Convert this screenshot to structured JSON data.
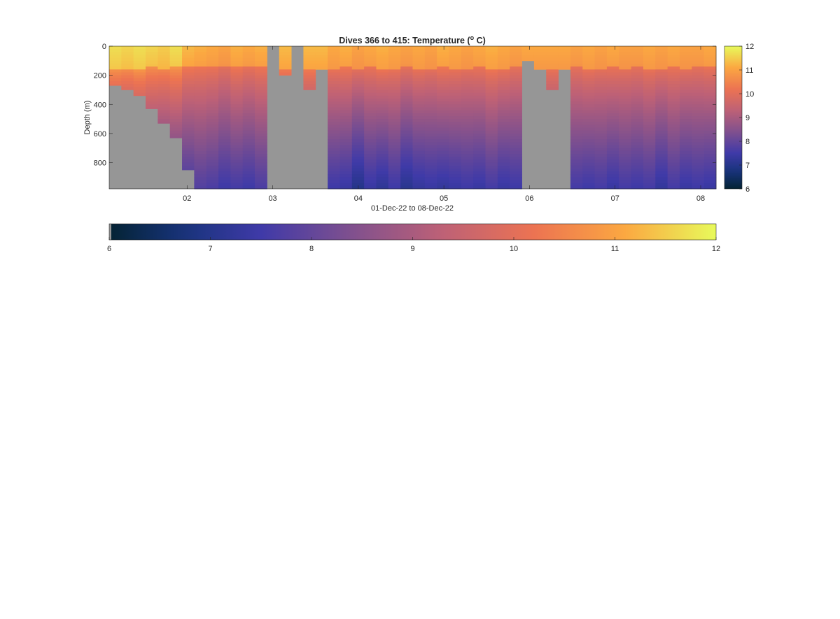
{
  "chart_data": {
    "type": "heatmap",
    "title": "Dives 366 to 415: Temperature (",
    "title_superscript": "o",
    "title_suffix": " C)",
    "xlabel": "01-Dec-22 to 08-Dec-22",
    "ylabel": "Depth (m)",
    "x_ticks": [
      "02",
      "03",
      "04",
      "05",
      "06",
      "07",
      "08"
    ],
    "y_ticks": [
      "0",
      "200",
      "400",
      "600",
      "800"
    ],
    "colorbar_ticks": [
      "6",
      "7",
      "8",
      "9",
      "10",
      "11",
      "12"
    ],
    "colorbar_horizontal_ticks": [
      "6",
      "7",
      "8",
      "9",
      "10",
      "11",
      "12"
    ],
    "xlim_days": [
      1.09,
      8.18
    ],
    "ylim": [
      0,
      980
    ],
    "y_reversed": true,
    "clim": [
      6,
      12
    ],
    "colormap": "thermal",
    "nodata_color": "#969696",
    "dives": {
      "count": 50,
      "bottom_depth_m": [
        270,
        300,
        340,
        430,
        530,
        630,
        850,
        980,
        980,
        980,
        980,
        980,
        980,
        980,
        200,
        0,
        300,
        160,
        980,
        980,
        980,
        980,
        980,
        980,
        980,
        980,
        980,
        980,
        980,
        980,
        980,
        980,
        980,
        980,
        100,
        160,
        300,
        160,
        980,
        980,
        980,
        980,
        980,
        980,
        980,
        980,
        980,
        980,
        980,
        980
      ],
      "no_data_dives": [
        13
      ],
      "surface_temp_c": [
        11.7,
        11.6,
        11.7,
        11.6,
        11.5,
        11.7,
        11.3,
        11.2,
        11.1,
        11.0,
        11.2,
        11.1,
        11.2,
        11.1,
        11.3,
        11.3,
        11.3,
        11.3,
        11.1,
        11.2,
        11.0,
        11.1,
        11.2,
        11.1,
        11.0,
        11.1,
        11.0,
        11.2,
        11.1,
        11.0,
        11.1,
        11.2,
        11.1,
        11.0,
        11.1,
        11.1,
        11.1,
        11.1,
        11.0,
        11.1,
        11.0,
        11.1,
        11.0,
        11.0,
        11.1,
        11.0,
        11.1,
        11.0,
        11.0,
        11.1
      ],
      "mixed_layer_depth_m": [
        150,
        150,
        160,
        140,
        150,
        140,
        130,
        130,
        140,
        130,
        140,
        130,
        130,
        140,
        150,
        150,
        150,
        150,
        150,
        140,
        150,
        140,
        150,
        150,
        140,
        150,
        150,
        140,
        150,
        150,
        140,
        150,
        150,
        140,
        150,
        150,
        150,
        150,
        140,
        150,
        150,
        140,
        150,
        140,
        150,
        150,
        140,
        150,
        140,
        140
      ],
      "temp_at_1000m_c": [
        7.5,
        7.5,
        7.5,
        7.5,
        7.5,
        7.5,
        7.5,
        7.7,
        7.6,
        7.4,
        7.5,
        7.4,
        7.6,
        7.5,
        7.5,
        7.5,
        7.5,
        7.5,
        7.4,
        7.3,
        6.9,
        7.3,
        7.1,
        7.4,
        7.0,
        7.2,
        7.3,
        7.2,
        7.3,
        7.4,
        7.3,
        7.5,
        7.3,
        7.4,
        7.5,
        7.5,
        7.5,
        7.5,
        7.5,
        7.4,
        7.5,
        7.3,
        7.5,
        7.4,
        7.5,
        7.2,
        7.5,
        7.3,
        7.4,
        7.3
      ]
    }
  }
}
